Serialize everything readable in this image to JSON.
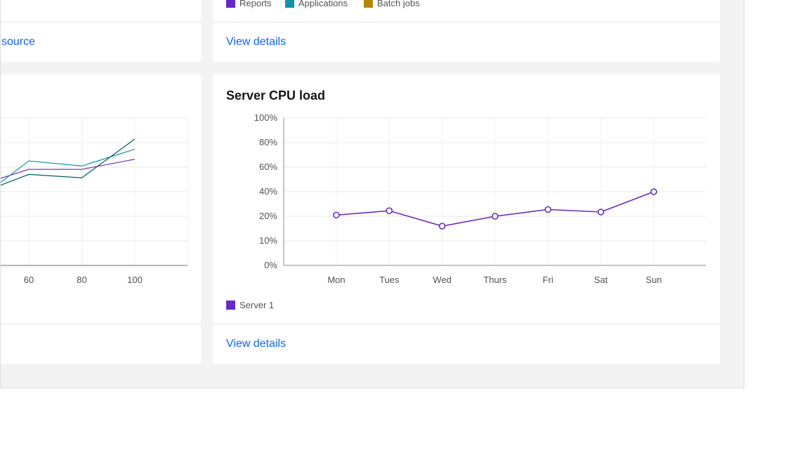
{
  "top_left_card": {
    "link_label": "source"
  },
  "top_right_card": {
    "legend": [
      {
        "label": "Reports",
        "color": "#6929c4"
      },
      {
        "label": "Applications",
        "color": "#1192a8"
      },
      {
        "label": "Batch jobs",
        "color": "#b28600"
      }
    ],
    "link_label": "View details"
  },
  "bottom_left_card": {
    "x_tick_labels": [
      "60",
      "80",
      "100"
    ]
  },
  "bottom_right_card": {
    "title": "Server CPU load",
    "link_label": "View details"
  },
  "chart_data": [
    {
      "type": "line",
      "title": "Server CPU load",
      "categories": [
        "Mon",
        "Tues",
        "Wed",
        "Thurs",
        "Fri",
        "Sat",
        "Sun"
      ],
      "y_tick_labels": [
        "0%",
        "10%",
        "20%",
        "40%",
        "60%",
        "80%",
        "100%"
      ],
      "series": [
        {
          "name": "Server 1",
          "color": "#6929c4",
          "values": [
            21,
            24.5,
            16,
            20,
            25.5,
            23.5,
            40
          ]
        }
      ],
      "legend_position": "bottom-left",
      "grid": true
    },
    {
      "type": "line",
      "x": [
        60,
        80,
        100
      ],
      "x_tick_labels": [
        "60",
        "80",
        "100"
      ],
      "series": [
        {
          "color": "#6929c4",
          "values": [
            57,
            57,
            63
          ]
        },
        {
          "color": "#1192a8",
          "values": [
            62,
            59,
            69
          ]
        },
        {
          "color": "#005d5d",
          "values": [
            54,
            52,
            75
          ]
        }
      ],
      "grid": true,
      "note": "chart is cropped on the left; y-axis labels not visible"
    }
  ]
}
